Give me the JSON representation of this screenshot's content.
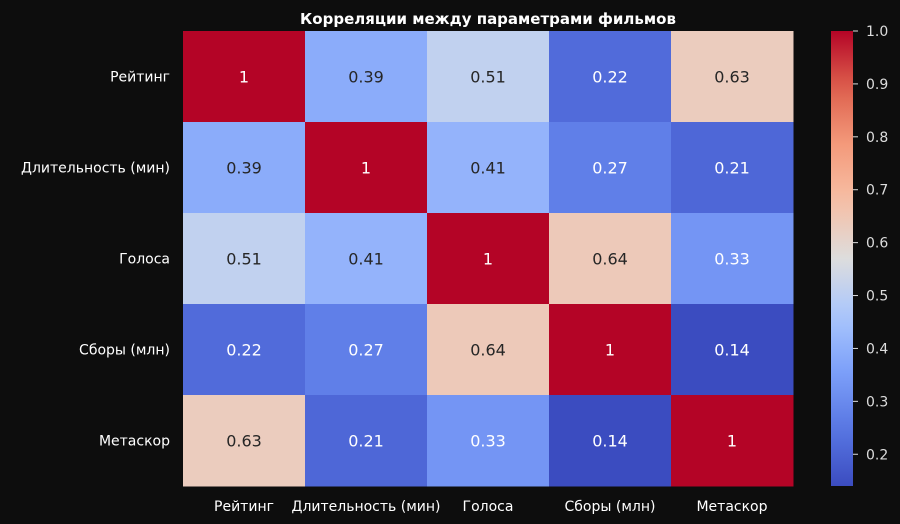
{
  "chart_data": {
    "type": "heatmap",
    "title": "Корреляции между параметрами фильмов",
    "row_labels": [
      "Рейтинг",
      "Длительность (мин)",
      "Голоса",
      "Сборы (млн)",
      "Метаскор"
    ],
    "col_labels": [
      "Рейтинг",
      "Длительность (мин)",
      "Голоса",
      "Сборы (млн)",
      "Метаскор"
    ],
    "values": [
      [
        1,
        0.39,
        0.51,
        0.22,
        0.63
      ],
      [
        0.39,
        1,
        0.41,
        0.27,
        0.21
      ],
      [
        0.51,
        0.41,
        1,
        0.64,
        0.33
      ],
      [
        0.22,
        0.27,
        0.64,
        1,
        0.14
      ],
      [
        0.63,
        0.21,
        0.33,
        0.14,
        1
      ]
    ],
    "colormap": "coolwarm",
    "vmin": 0.14,
    "vmax": 1.0,
    "colorbar_ticks": [
      "0.2",
      "0.3",
      "0.4",
      "0.5",
      "0.6",
      "0.7",
      "0.8",
      "0.9",
      "1.0"
    ],
    "colors": {
      "background": "#0d0d0d",
      "text": "#ffffff",
      "low": "#3b4cc0",
      "high": "#b40426"
    }
  }
}
